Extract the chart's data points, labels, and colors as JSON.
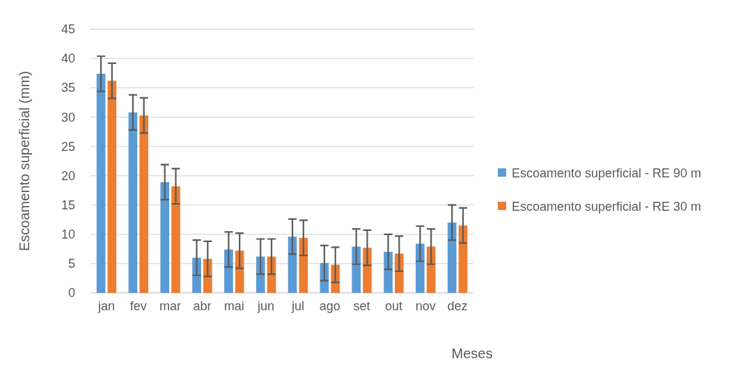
{
  "chart_data": {
    "type": "bar",
    "xlabel": "Meses",
    "ylabel": "Escoamento superficial (mm)",
    "categories": [
      "jan",
      "fev",
      "mar",
      "abr",
      "mai",
      "jun",
      "jul",
      "ago",
      "set",
      "out",
      "nov",
      "dez"
    ],
    "series": [
      {
        "name": "Escoamento superficial - RE 90 m",
        "color": "#5b9bd5",
        "values": [
          37.4,
          30.8,
          18.9,
          6.0,
          7.4,
          6.2,
          9.6,
          5.1,
          7.9,
          7.0,
          8.4,
          12.0
        ],
        "errors": [
          3,
          3,
          3,
          3,
          3,
          3,
          3,
          3,
          3,
          3,
          3,
          3
        ]
      },
      {
        "name": "Escoamento superficial - RE 30 m",
        "color": "#ed7d31",
        "values": [
          36.2,
          30.3,
          18.2,
          5.8,
          7.2,
          6.2,
          9.4,
          4.8,
          7.7,
          6.7,
          7.9,
          11.5
        ],
        "errors": [
          3,
          3,
          3,
          3,
          3,
          3,
          3,
          3,
          3,
          3,
          3,
          3
        ]
      }
    ],
    "ylim": [
      0,
      45
    ],
    "yticks": [
      0,
      5,
      10,
      15,
      20,
      25,
      30,
      35,
      40,
      45
    ],
    "grid": "y",
    "legend": "right"
  }
}
